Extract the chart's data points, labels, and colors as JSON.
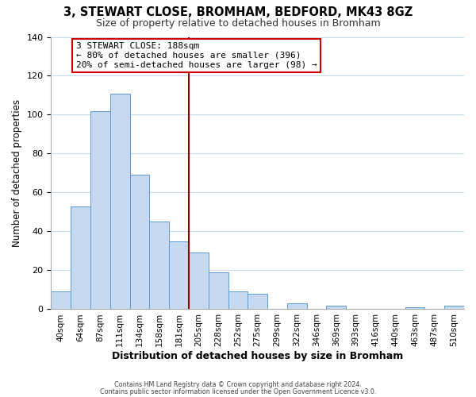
{
  "title": "3, STEWART CLOSE, BROMHAM, BEDFORD, MK43 8GZ",
  "subtitle": "Size of property relative to detached houses in Bromham",
  "xlabel": "Distribution of detached houses by size in Bromham",
  "ylabel": "Number of detached properties",
  "bar_color": "#c6d9f0",
  "bar_edge_color": "#5b9bd5",
  "categories": [
    "40sqm",
    "64sqm",
    "87sqm",
    "111sqm",
    "134sqm",
    "158sqm",
    "181sqm",
    "205sqm",
    "228sqm",
    "252sqm",
    "275sqm",
    "299sqm",
    "322sqm",
    "346sqm",
    "369sqm",
    "393sqm",
    "416sqm",
    "440sqm",
    "463sqm",
    "487sqm",
    "510sqm"
  ],
  "values": [
    9,
    53,
    102,
    111,
    69,
    45,
    35,
    29,
    19,
    9,
    8,
    0,
    3,
    0,
    2,
    0,
    0,
    0,
    1,
    0,
    2
  ],
  "vline_index": 6,
  "vline_color": "#8b0000",
  "annotation_title": "3 STEWART CLOSE: 188sqm",
  "annotation_line1": "← 80% of detached houses are smaller (396)",
  "annotation_line2": "20% of semi-detached houses are larger (98) →",
  "annotation_box_color": "#cc0000",
  "ylim": [
    0,
    140
  ],
  "yticks": [
    0,
    20,
    40,
    60,
    80,
    100,
    120,
    140
  ],
  "footer1": "Contains HM Land Registry data © Crown copyright and database right 2024.",
  "footer2": "Contains public sector information licensed under the Open Government Licence v3.0."
}
